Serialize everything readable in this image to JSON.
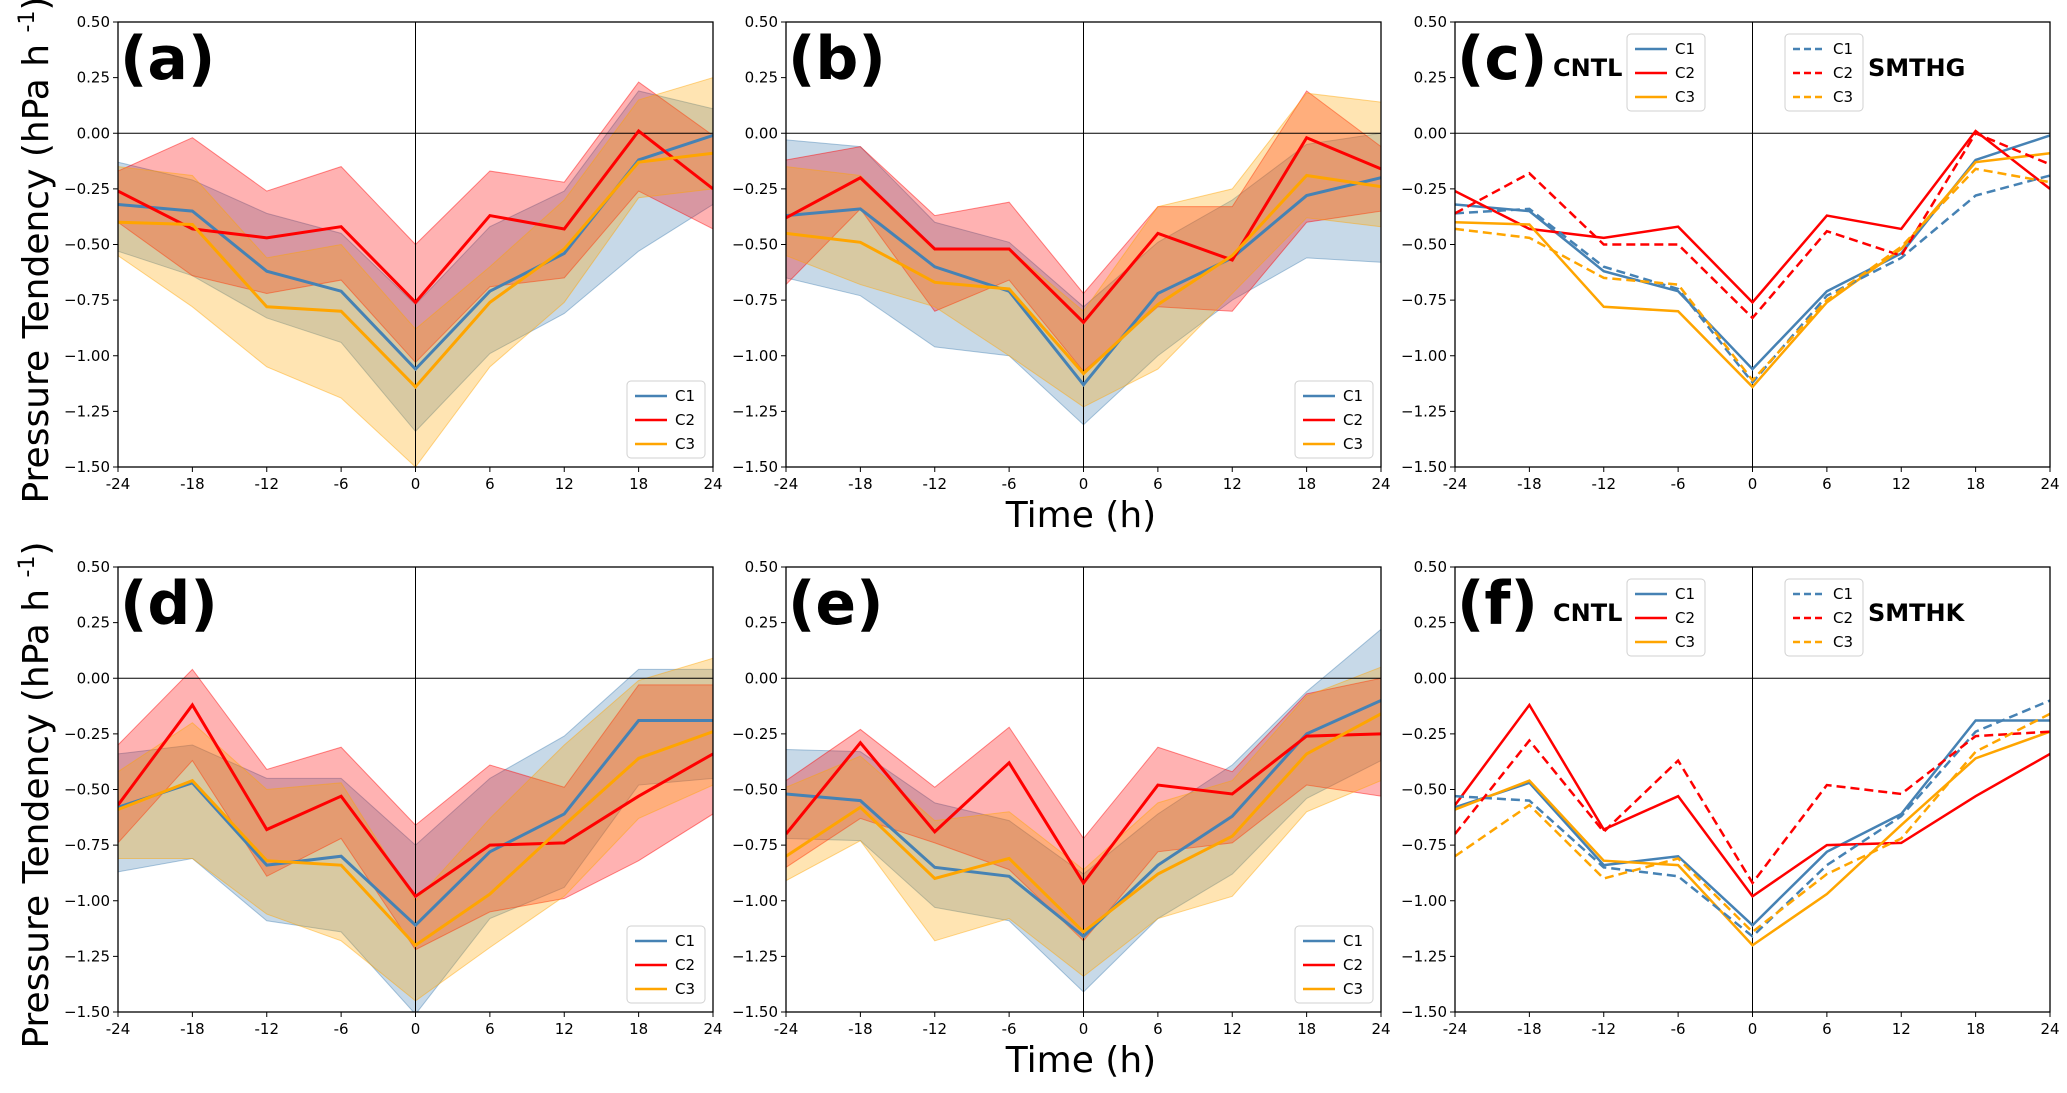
{
  "figure": {
    "xlabel": "Time (h)",
    "ylabel": "Pressure Tendency (hPa h ⁻¹)",
    "ylabel_parts": {
      "main": "Pressure Tendency (hPa h ",
      "sup": "-1",
      "close": ")"
    },
    "series_colors": {
      "C1": "#4682b4",
      "C2": "#ff0000",
      "C3": "#ffa500"
    }
  },
  "chart_data": [
    {
      "panel": "(a)",
      "type": "line",
      "x": [
        -24,
        -18,
        -12,
        -6,
        0,
        6,
        12,
        18,
        24
      ],
      "xticks": [
        "-24",
        "-18",
        "-12",
        "-6",
        "0",
        "6",
        "12",
        "18",
        "24"
      ],
      "yticks": [
        "0.50",
        "0.25",
        "0.00",
        "−0.25",
        "−0.50",
        "−0.75",
        "−1.00",
        "−1.25",
        "−1.50"
      ],
      "ylim": [
        -1.5,
        0.5
      ],
      "xlim": [
        -24,
        24
      ],
      "show_ytick_labels": true,
      "legend": {
        "position": "lower-right",
        "entries": [
          "C1",
          "C2",
          "C3"
        ]
      },
      "series": [
        {
          "name": "C1",
          "style": "solid",
          "values": [
            -0.32,
            -0.35,
            -0.62,
            -0.71,
            -1.06,
            -0.71,
            -0.54,
            -0.12,
            -0.01
          ],
          "band_upper": [
            -0.13,
            -0.21,
            -0.36,
            -0.45,
            -0.77,
            -0.42,
            -0.26,
            0.19,
            0.11
          ],
          "band_lower": [
            -0.53,
            -0.64,
            -0.83,
            -0.94,
            -1.34,
            -0.99,
            -0.81,
            -0.53,
            -0.32
          ]
        },
        {
          "name": "C2",
          "style": "solid",
          "values": [
            -0.26,
            -0.43,
            -0.47,
            -0.42,
            -0.76,
            -0.37,
            -0.43,
            0.01,
            -0.25
          ],
          "band_upper": [
            -0.17,
            -0.02,
            -0.26,
            -0.15,
            -0.5,
            -0.17,
            -0.22,
            0.23,
            -0.01
          ],
          "band_lower": [
            -0.4,
            -0.64,
            -0.72,
            -0.66,
            -1.03,
            -0.69,
            -0.65,
            -0.26,
            -0.43
          ]
        },
        {
          "name": "C3",
          "style": "solid",
          "values": [
            -0.4,
            -0.41,
            -0.78,
            -0.8,
            -1.14,
            -0.76,
            -0.52,
            -0.13,
            -0.09
          ],
          "band_upper": [
            -0.15,
            -0.19,
            -0.56,
            -0.5,
            -0.88,
            -0.6,
            -0.3,
            0.15,
            0.25
          ],
          "band_lower": [
            -0.55,
            -0.78,
            -1.05,
            -1.19,
            -1.5,
            -1.05,
            -0.76,
            -0.29,
            -0.25
          ]
        }
      ]
    },
    {
      "panel": "(b)",
      "type": "line",
      "x": [
        -24,
        -18,
        -12,
        -6,
        0,
        6,
        12,
        18,
        24
      ],
      "xticks": [
        "-24",
        "-18",
        "-12",
        "-6",
        "0",
        "6",
        "12",
        "18",
        "24"
      ],
      "yticks": [
        "0.50",
        "0.25",
        "0.00",
        "−0.25",
        "−0.50",
        "−0.75",
        "−1.00",
        "−1.25",
        "−1.50"
      ],
      "ylim": [
        -1.5,
        0.5
      ],
      "xlim": [
        -24,
        24
      ],
      "show_ytick_labels": true,
      "legend": {
        "position": "lower-right",
        "entries": [
          "C1",
          "C2",
          "C3"
        ]
      },
      "series": [
        {
          "name": "C1",
          "style": "solid",
          "values": [
            -0.37,
            -0.34,
            -0.6,
            -0.71,
            -1.13,
            -0.72,
            -0.56,
            -0.28,
            -0.2
          ],
          "band_upper": [
            -0.03,
            -0.06,
            -0.4,
            -0.49,
            -0.78,
            -0.49,
            -0.3,
            -0.05,
            0.0
          ],
          "band_lower": [
            -0.65,
            -0.73,
            -0.96,
            -1.0,
            -1.31,
            -1.0,
            -0.75,
            -0.56,
            -0.58
          ]
        },
        {
          "name": "C2",
          "style": "solid",
          "values": [
            -0.38,
            -0.2,
            -0.52,
            -0.52,
            -0.85,
            -0.45,
            -0.57,
            -0.02,
            -0.16
          ],
          "band_upper": [
            -0.12,
            -0.06,
            -0.37,
            -0.31,
            -0.72,
            -0.33,
            -0.33,
            0.19,
            -0.06
          ],
          "band_lower": [
            -0.68,
            -0.34,
            -0.8,
            -0.66,
            -1.07,
            -0.78,
            -0.8,
            -0.4,
            -0.35
          ]
        },
        {
          "name": "C3",
          "style": "solid",
          "values": [
            -0.45,
            -0.49,
            -0.67,
            -0.7,
            -1.08,
            -0.77,
            -0.55,
            -0.19,
            -0.24
          ],
          "band_upper": [
            -0.15,
            -0.19,
            -0.52,
            -0.52,
            -0.8,
            -0.33,
            -0.25,
            0.18,
            0.14
          ],
          "band_lower": [
            -0.55,
            -0.68,
            -0.78,
            -1.0,
            -1.23,
            -1.06,
            -0.72,
            -0.38,
            -0.42
          ]
        }
      ]
    },
    {
      "panel": "(c)",
      "type": "line",
      "x": [
        -24,
        -18,
        -12,
        -6,
        0,
        6,
        12,
        18,
        24
      ],
      "xticks": [
        "-24",
        "-18",
        "-12",
        "-6",
        "0",
        "6",
        "12",
        "18",
        "24"
      ],
      "yticks": [
        "0.50",
        "0.25",
        "0.00",
        "−0.25",
        "−0.50",
        "−0.75",
        "−1.00",
        "−1.25",
        "−1.50"
      ],
      "ylim": [
        -1.5,
        0.5
      ],
      "xlim": [
        -24,
        24
      ],
      "show_ytick_labels": true,
      "experiment_labels": [
        "CNTL",
        "SMTHG"
      ],
      "legends": [
        {
          "title_label": "CNTL",
          "style": "solid",
          "entries": [
            "C1",
            "C2",
            "C3"
          ],
          "position": "top-center-left"
        },
        {
          "title_label": "SMTHG",
          "style": "dashed",
          "entries": [
            "C1",
            "C2",
            "C3"
          ],
          "position": "top-center-right"
        }
      ],
      "series": [
        {
          "name": "C1",
          "style": "solid",
          "values": [
            -0.32,
            -0.35,
            -0.62,
            -0.71,
            -1.06,
            -0.71,
            -0.54,
            -0.12,
            -0.01
          ]
        },
        {
          "name": "C2",
          "style": "solid",
          "values": [
            -0.26,
            -0.43,
            -0.47,
            -0.42,
            -0.76,
            -0.37,
            -0.43,
            0.01,
            -0.25
          ]
        },
        {
          "name": "C3",
          "style": "solid",
          "values": [
            -0.4,
            -0.41,
            -0.78,
            -0.8,
            -1.14,
            -0.76,
            -0.52,
            -0.13,
            -0.09
          ]
        },
        {
          "name": "C1",
          "style": "dashed",
          "values": [
            -0.36,
            -0.34,
            -0.6,
            -0.7,
            -1.12,
            -0.73,
            -0.56,
            -0.28,
            -0.19
          ]
        },
        {
          "name": "C2",
          "style": "dashed",
          "values": [
            -0.36,
            -0.18,
            -0.5,
            -0.5,
            -0.83,
            -0.44,
            -0.55,
            0.0,
            -0.14
          ]
        },
        {
          "name": "C3",
          "style": "dashed",
          "values": [
            -0.43,
            -0.47,
            -0.65,
            -0.68,
            -1.11,
            -0.75,
            -0.51,
            -0.16,
            -0.22
          ]
        }
      ]
    },
    {
      "panel": "(d)",
      "type": "line",
      "x": [
        -24,
        -18,
        -12,
        -6,
        0,
        6,
        12,
        18,
        24
      ],
      "xticks": [
        "-24",
        "-18",
        "-12",
        "-6",
        "0",
        "6",
        "12",
        "18",
        "24"
      ],
      "yticks": [
        "0.50",
        "0.25",
        "0.00",
        "−0.25",
        "−0.50",
        "−0.75",
        "−1.00",
        "−1.25",
        "−1.50"
      ],
      "ylim": [
        -1.5,
        0.5
      ],
      "xlim": [
        -24,
        24
      ],
      "show_ytick_labels": true,
      "legend": {
        "position": "lower-right",
        "entries": [
          "C1",
          "C2",
          "C3"
        ]
      },
      "series": [
        {
          "name": "C1",
          "style": "solid",
          "values": [
            -0.58,
            -0.47,
            -0.84,
            -0.8,
            -1.11,
            -0.78,
            -0.61,
            -0.19,
            -0.19
          ],
          "band_upper": [
            -0.34,
            -0.3,
            -0.45,
            -0.45,
            -0.75,
            -0.45,
            -0.26,
            0.04,
            0.04
          ],
          "band_lower": [
            -0.87,
            -0.81,
            -1.09,
            -1.14,
            -1.51,
            -1.08,
            -0.94,
            -0.48,
            -0.45
          ]
        },
        {
          "name": "C2",
          "style": "solid",
          "values": [
            -0.57,
            -0.12,
            -0.68,
            -0.53,
            -0.98,
            -0.75,
            -0.74,
            -0.53,
            -0.34
          ],
          "band_upper": [
            -0.3,
            0.04,
            -0.41,
            -0.31,
            -0.66,
            -0.39,
            -0.49,
            -0.03,
            -0.03
          ],
          "band_lower": [
            -0.74,
            -0.37,
            -0.89,
            -0.72,
            -1.22,
            -1.05,
            -0.99,
            -0.82,
            -0.61
          ]
        },
        {
          "name": "C3",
          "style": "solid",
          "values": [
            -0.59,
            -0.46,
            -0.82,
            -0.84,
            -1.2,
            -0.97,
            -0.66,
            -0.36,
            -0.24
          ],
          "band_upper": [
            -0.42,
            -0.2,
            -0.5,
            -0.47,
            -1.0,
            -0.63,
            -0.3,
            -0.01,
            0.09
          ],
          "band_lower": [
            -0.81,
            -0.81,
            -1.06,
            -1.18,
            -1.45,
            -1.21,
            -0.98,
            -0.63,
            -0.48
          ]
        }
      ]
    },
    {
      "panel": "(e)",
      "type": "line",
      "x": [
        -24,
        -18,
        -12,
        -6,
        0,
        6,
        12,
        18,
        24
      ],
      "xticks": [
        "-24",
        "-18",
        "-12",
        "-6",
        "0",
        "6",
        "12",
        "18",
        "24"
      ],
      "yticks": [
        "0.50",
        "0.25",
        "0.00",
        "−0.25",
        "−0.50",
        "−0.75",
        "−1.00",
        "−1.25",
        "−1.50"
      ],
      "ylim": [
        -1.5,
        0.5
      ],
      "xlim": [
        -24,
        24
      ],
      "show_ytick_labels": true,
      "legend": {
        "position": "lower-right",
        "entries": [
          "C1",
          "C2",
          "C3"
        ]
      },
      "series": [
        {
          "name": "C1",
          "style": "solid",
          "values": [
            -0.52,
            -0.55,
            -0.85,
            -0.89,
            -1.16,
            -0.84,
            -0.62,
            -0.25,
            -0.1
          ],
          "band_upper": [
            -0.32,
            -0.33,
            -0.56,
            -0.64,
            -0.88,
            -0.61,
            -0.39,
            -0.06,
            0.22
          ],
          "band_lower": [
            -0.72,
            -0.73,
            -1.03,
            -1.09,
            -1.41,
            -1.08,
            -0.88,
            -0.54,
            -0.37
          ]
        },
        {
          "name": "C2",
          "style": "solid",
          "values": [
            -0.7,
            -0.29,
            -0.69,
            -0.38,
            -0.92,
            -0.48,
            -0.52,
            -0.26,
            -0.25
          ],
          "band_upper": [
            -0.46,
            -0.23,
            -0.49,
            -0.22,
            -0.72,
            -0.31,
            -0.42,
            -0.07,
            0.0
          ],
          "band_lower": [
            -0.85,
            -0.63,
            -0.74,
            -0.86,
            -1.18,
            -0.78,
            -0.74,
            -0.48,
            -0.53
          ]
        },
        {
          "name": "C3",
          "style": "solid",
          "values": [
            -0.8,
            -0.58,
            -0.9,
            -0.81,
            -1.14,
            -0.88,
            -0.71,
            -0.34,
            -0.16
          ],
          "band_upper": [
            -0.49,
            -0.35,
            -0.64,
            -0.6,
            -0.86,
            -0.56,
            -0.46,
            -0.08,
            0.05
          ],
          "band_lower": [
            -0.91,
            -0.73,
            -1.18,
            -1.08,
            -1.34,
            -1.08,
            -0.98,
            -0.6,
            -0.46
          ]
        }
      ]
    },
    {
      "panel": "(f)",
      "type": "line",
      "x": [
        -24,
        -18,
        -12,
        -6,
        0,
        6,
        12,
        18,
        24
      ],
      "xticks": [
        "-24",
        "-18",
        "-12",
        "-6",
        "0",
        "6",
        "12",
        "18",
        "24"
      ],
      "yticks": [
        "0.50",
        "0.25",
        "0.00",
        "−0.25",
        "−0.50",
        "−0.75",
        "−1.00",
        "−1.25",
        "−1.50"
      ],
      "ylim": [
        -1.5,
        0.5
      ],
      "xlim": [
        -24,
        24
      ],
      "show_ytick_labels": true,
      "experiment_labels": [
        "CNTL",
        "SMTHK"
      ],
      "legends": [
        {
          "title_label": "CNTL",
          "style": "solid",
          "entries": [
            "C1",
            "C2",
            "C3"
          ],
          "position": "top-center-left"
        },
        {
          "title_label": "SMTHK",
          "style": "dashed",
          "entries": [
            "C1",
            "C2",
            "C3"
          ],
          "position": "top-center-right"
        }
      ],
      "series": [
        {
          "name": "C1",
          "style": "solid",
          "values": [
            -0.58,
            -0.47,
            -0.84,
            -0.8,
            -1.11,
            -0.78,
            -0.61,
            -0.19,
            -0.19
          ]
        },
        {
          "name": "C2",
          "style": "solid",
          "values": [
            -0.57,
            -0.12,
            -0.68,
            -0.53,
            -0.98,
            -0.75,
            -0.74,
            -0.53,
            -0.34
          ]
        },
        {
          "name": "C3",
          "style": "solid",
          "values": [
            -0.59,
            -0.46,
            -0.82,
            -0.84,
            -1.2,
            -0.97,
            -0.66,
            -0.36,
            -0.24
          ]
        },
        {
          "name": "C1",
          "style": "dashed",
          "values": [
            -0.53,
            -0.55,
            -0.85,
            -0.89,
            -1.16,
            -0.84,
            -0.62,
            -0.24,
            -0.1
          ]
        },
        {
          "name": "C2",
          "style": "dashed",
          "values": [
            -0.7,
            -0.28,
            -0.69,
            -0.37,
            -0.92,
            -0.48,
            -0.52,
            -0.26,
            -0.24
          ]
        },
        {
          "name": "C3",
          "style": "dashed",
          "values": [
            -0.8,
            -0.57,
            -0.9,
            -0.81,
            -1.14,
            -0.88,
            -0.72,
            -0.33,
            -0.16
          ]
        }
      ]
    }
  ]
}
